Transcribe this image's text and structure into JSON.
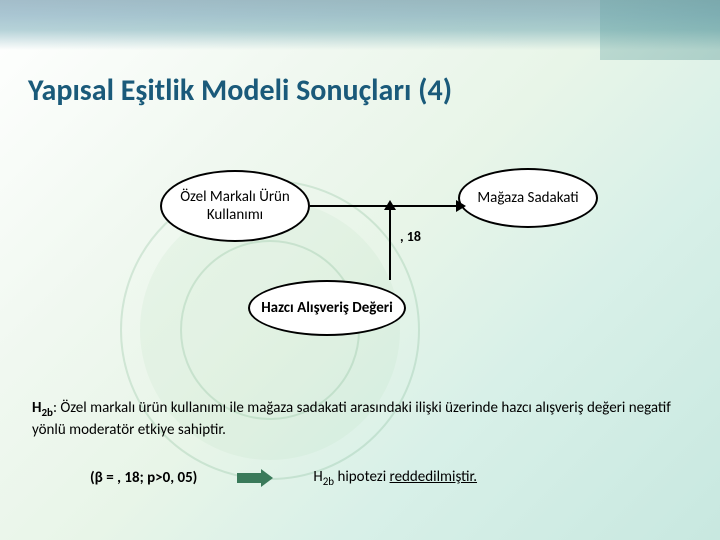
{
  "title": "Yapısal Eşitlik Modeli Sonuçları (4)",
  "diagram": {
    "type": "network",
    "nodes": {
      "left": {
        "label": "Özel Markalı Ürün Kullanımı"
      },
      "right": {
        "label": "Mağaza Sadakati"
      },
      "bottom": {
        "label": "Hazcı Alışveriş Değeri"
      }
    },
    "edges": {
      "horiz": {
        "from": "left",
        "to": "right"
      },
      "vert": {
        "from": "bottom",
        "to": "horiz",
        "label": ", 18"
      }
    },
    "node_border": "#000000",
    "node_fill": "#ffffff",
    "font_size": 15
  },
  "hypothesis": {
    "label_prefix": "H",
    "label_sub": "2b",
    "text": ": Özel markalı ürün kullanımı ile mağaza sadakati arasındaki ilişki üzerinde hazcı alışveriş değeri negatif yönlü moderatör etkiye sahiptir."
  },
  "result": {
    "stat": "(β = , 18; p>0, 05)",
    "conclusion_prefix": "H",
    "conclusion_sub": "2b",
    "conclusion_mid": " hipotezi ",
    "conclusion_verdict": "reddedilmiştir."
  },
  "colors": {
    "title": "#1a5a7a",
    "arrow_result": "#3a7a5a",
    "bg_start": "#ffffff",
    "bg_end": "#c8e8e0"
  }
}
